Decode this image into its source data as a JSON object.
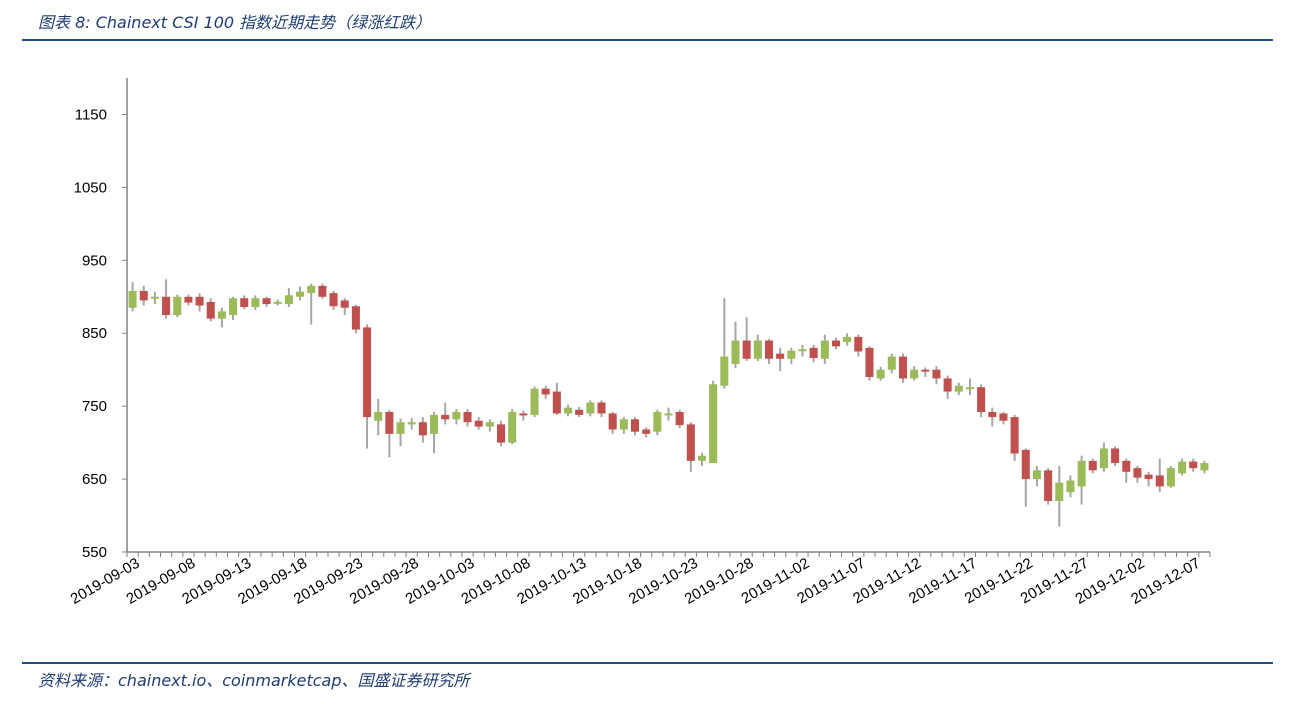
{
  "header": {
    "title": "图表 8:  Chainext CSI 100 指数近期走势（绿涨红跌）"
  },
  "footer": {
    "source": "资料来源：chainext.io、coinmarketcap、国盛证券研究所"
  },
  "colors": {
    "up": "#9bbb59",
    "down": "#c0504d",
    "wick": "#a6a6a6",
    "axis": "#808080",
    "rule": "#1f4e8c",
    "text_blue": "#1f3c73"
  },
  "chart_data": {
    "type": "candlestick",
    "ylim": [
      550,
      1200
    ],
    "yticks": [
      550,
      650,
      750,
      850,
      950,
      1050,
      1150
    ],
    "grid": false,
    "legend": "none",
    "xtick_labels": [
      "2019-09-03",
      "2019-09-08",
      "2019-09-13",
      "2019-09-18",
      "2019-09-23",
      "2019-09-28",
      "2019-10-03",
      "2019-10-08",
      "2019-10-13",
      "2019-10-18",
      "2019-10-23",
      "2019-10-28",
      "2019-11-02",
      "2019-11-07",
      "2019-11-12",
      "2019-11-17",
      "2019-11-22",
      "2019-11-27",
      "2019-12-02",
      "2019-12-07"
    ],
    "candles": [
      {
        "date": "2019-09-03",
        "open": 885,
        "close": 908,
        "high": 920,
        "low": 880
      },
      {
        "date": "2019-09-04",
        "open": 908,
        "close": 895,
        "high": 915,
        "low": 888
      },
      {
        "date": "2019-09-05",
        "open": 898,
        "close": 900,
        "high": 907,
        "low": 890
      },
      {
        "date": "2019-09-06",
        "open": 900,
        "close": 875,
        "high": 924,
        "low": 870
      },
      {
        "date": "2019-09-07",
        "open": 875,
        "close": 900,
        "high": 903,
        "low": 872
      },
      {
        "date": "2019-09-08",
        "open": 900,
        "close": 892,
        "high": 903,
        "low": 888
      },
      {
        "date": "2019-09-09",
        "open": 900,
        "close": 888,
        "high": 905,
        "low": 880
      },
      {
        "date": "2019-09-10",
        "open": 893,
        "close": 870,
        "high": 898,
        "low": 866
      },
      {
        "date": "2019-09-11",
        "open": 870,
        "close": 880,
        "high": 885,
        "low": 858
      },
      {
        "date": "2019-09-12",
        "open": 875,
        "close": 898,
        "high": 900,
        "low": 868
      },
      {
        "date": "2019-09-13",
        "open": 898,
        "close": 886,
        "high": 902,
        "low": 883
      },
      {
        "date": "2019-09-14",
        "open": 886,
        "close": 898,
        "high": 902,
        "low": 882
      },
      {
        "date": "2019-09-15",
        "open": 898,
        "close": 890,
        "high": 900,
        "low": 886
      },
      {
        "date": "2019-09-16",
        "open": 893,
        "close": 893,
        "high": 896,
        "low": 888
      },
      {
        "date": "2019-09-17",
        "open": 890,
        "close": 902,
        "high": 912,
        "low": 886
      },
      {
        "date": "2019-09-18",
        "open": 900,
        "close": 907,
        "high": 914,
        "low": 895
      },
      {
        "date": "2019-09-19",
        "open": 905,
        "close": 915,
        "high": 918,
        "low": 862
      },
      {
        "date": "2019-09-20",
        "open": 915,
        "close": 900,
        "high": 918,
        "low": 897
      },
      {
        "date": "2019-09-21",
        "open": 905,
        "close": 887,
        "high": 908,
        "low": 882
      },
      {
        "date": "2019-09-22",
        "open": 895,
        "close": 885,
        "high": 898,
        "low": 875
      },
      {
        "date": "2019-09-23",
        "open": 887,
        "close": 855,
        "high": 889,
        "low": 850
      },
      {
        "date": "2019-09-24",
        "open": 858,
        "close": 735,
        "high": 862,
        "low": 692
      },
      {
        "date": "2019-09-25",
        "open": 730,
        "close": 742,
        "high": 760,
        "low": 710
      },
      {
        "date": "2019-09-26",
        "open": 742,
        "close": 712,
        "high": 745,
        "low": 680
      },
      {
        "date": "2019-09-27",
        "open": 712,
        "close": 728,
        "high": 733,
        "low": 695
      },
      {
        "date": "2019-09-28",
        "open": 725,
        "close": 728,
        "high": 734,
        "low": 718
      },
      {
        "date": "2019-09-29",
        "open": 728,
        "close": 710,
        "high": 735,
        "low": 700
      },
      {
        "date": "2019-09-30",
        "open": 712,
        "close": 738,
        "high": 742,
        "low": 685
      },
      {
        "date": "2019-10-01",
        "open": 738,
        "close": 732,
        "high": 755,
        "low": 725
      },
      {
        "date": "2019-10-02",
        "open": 732,
        "close": 742,
        "high": 746,
        "low": 725
      },
      {
        "date": "2019-10-03",
        "open": 742,
        "close": 728,
        "high": 746,
        "low": 722
      },
      {
        "date": "2019-10-04",
        "open": 730,
        "close": 722,
        "high": 735,
        "low": 718
      },
      {
        "date": "2019-10-05",
        "open": 722,
        "close": 728,
        "high": 732,
        "low": 715
      },
      {
        "date": "2019-10-06",
        "open": 725,
        "close": 700,
        "high": 730,
        "low": 695
      },
      {
        "date": "2019-10-07",
        "open": 700,
        "close": 742,
        "high": 746,
        "low": 698
      },
      {
        "date": "2019-10-08",
        "open": 740,
        "close": 738,
        "high": 744,
        "low": 730
      },
      {
        "date": "2019-10-09",
        "open": 738,
        "close": 774,
        "high": 777,
        "low": 735
      },
      {
        "date": "2019-10-10",
        "open": 774,
        "close": 766,
        "high": 778,
        "low": 760
      },
      {
        "date": "2019-10-11",
        "open": 770,
        "close": 740,
        "high": 782,
        "low": 738
      },
      {
        "date": "2019-10-12",
        "open": 740,
        "close": 748,
        "high": 752,
        "low": 736
      },
      {
        "date": "2019-10-13",
        "open": 745,
        "close": 738,
        "high": 749,
        "low": 735
      },
      {
        "date": "2019-10-14",
        "open": 740,
        "close": 755,
        "high": 758,
        "low": 736
      },
      {
        "date": "2019-10-15",
        "open": 755,
        "close": 740,
        "high": 758,
        "low": 735
      },
      {
        "date": "2019-10-16",
        "open": 740,
        "close": 718,
        "high": 742,
        "low": 712
      },
      {
        "date": "2019-10-17",
        "open": 718,
        "close": 732,
        "high": 735,
        "low": 712
      },
      {
        "date": "2019-10-18",
        "open": 732,
        "close": 715,
        "high": 735,
        "low": 710
      },
      {
        "date": "2019-10-19",
        "open": 718,
        "close": 712,
        "high": 721,
        "low": 707
      },
      {
        "date": "2019-10-20",
        "open": 715,
        "close": 742,
        "high": 745,
        "low": 710
      },
      {
        "date": "2019-10-21",
        "open": 738,
        "close": 740,
        "high": 748,
        "low": 730
      },
      {
        "date": "2019-10-22",
        "open": 742,
        "close": 724,
        "high": 745,
        "low": 720
      },
      {
        "date": "2019-10-23",
        "open": 725,
        "close": 675,
        "high": 728,
        "low": 660
      },
      {
        "date": "2019-10-24",
        "open": 675,
        "close": 682,
        "high": 686,
        "low": 668
      },
      {
        "date": "2019-10-25",
        "open": 672,
        "close": 780,
        "high": 785,
        "low": 672
      },
      {
        "date": "2019-10-26",
        "open": 778,
        "close": 818,
        "high": 898,
        "low": 774
      },
      {
        "date": "2019-10-27",
        "open": 808,
        "close": 840,
        "high": 866,
        "low": 802
      },
      {
        "date": "2019-10-28",
        "open": 840,
        "close": 815,
        "high": 872,
        "low": 812
      },
      {
        "date": "2019-10-29",
        "open": 815,
        "close": 840,
        "high": 848,
        "low": 812
      },
      {
        "date": "2019-10-30",
        "open": 840,
        "close": 815,
        "high": 842,
        "low": 808
      },
      {
        "date": "2019-10-31",
        "open": 822,
        "close": 815,
        "high": 830,
        "low": 798
      },
      {
        "date": "2019-11-01",
        "open": 815,
        "close": 826,
        "high": 830,
        "low": 808
      },
      {
        "date": "2019-11-02",
        "open": 826,
        "close": 828,
        "high": 834,
        "low": 818
      },
      {
        "date": "2019-11-03",
        "open": 830,
        "close": 816,
        "high": 834,
        "low": 810
      },
      {
        "date": "2019-11-04",
        "open": 815,
        "close": 840,
        "high": 848,
        "low": 808
      },
      {
        "date": "2019-11-05",
        "open": 840,
        "close": 832,
        "high": 844,
        "low": 828
      },
      {
        "date": "2019-11-06",
        "open": 838,
        "close": 845,
        "high": 850,
        "low": 833
      },
      {
        "date": "2019-11-07",
        "open": 845,
        "close": 825,
        "high": 848,
        "low": 818
      },
      {
        "date": "2019-11-08",
        "open": 830,
        "close": 790,
        "high": 832,
        "low": 785
      },
      {
        "date": "2019-11-09",
        "open": 788,
        "close": 800,
        "high": 804,
        "low": 785
      },
      {
        "date": "2019-11-10",
        "open": 800,
        "close": 818,
        "high": 822,
        "low": 795
      },
      {
        "date": "2019-11-11",
        "open": 818,
        "close": 788,
        "high": 822,
        "low": 782
      },
      {
        "date": "2019-11-12",
        "open": 788,
        "close": 800,
        "high": 805,
        "low": 785
      },
      {
        "date": "2019-11-13",
        "open": 800,
        "close": 798,
        "high": 803,
        "low": 790
      },
      {
        "date": "2019-11-14",
        "open": 800,
        "close": 788,
        "high": 805,
        "low": 780
      },
      {
        "date": "2019-11-15",
        "open": 788,
        "close": 770,
        "high": 792,
        "low": 760
      },
      {
        "date": "2019-11-16",
        "open": 770,
        "close": 778,
        "high": 782,
        "low": 765
      },
      {
        "date": "2019-11-17",
        "open": 775,
        "close": 776,
        "high": 788,
        "low": 765
      },
      {
        "date": "2019-11-18",
        "open": 776,
        "close": 742,
        "high": 780,
        "low": 735
      },
      {
        "date": "2019-11-19",
        "open": 742,
        "close": 735,
        "high": 748,
        "low": 722
      },
      {
        "date": "2019-11-20",
        "open": 740,
        "close": 730,
        "high": 742,
        "low": 725
      },
      {
        "date": "2019-11-21",
        "open": 735,
        "close": 685,
        "high": 738,
        "low": 675
      },
      {
        "date": "2019-11-22",
        "open": 690,
        "close": 650,
        "high": 692,
        "low": 612
      },
      {
        "date": "2019-11-23",
        "open": 650,
        "close": 662,
        "high": 668,
        "low": 640
      },
      {
        "date": "2019-11-24",
        "open": 662,
        "close": 620,
        "high": 665,
        "low": 615
      },
      {
        "date": "2019-11-25",
        "open": 620,
        "close": 645,
        "high": 668,
        "low": 585
      },
      {
        "date": "2019-11-26",
        "open": 632,
        "close": 648,
        "high": 655,
        "low": 625
      },
      {
        "date": "2019-11-27",
        "open": 640,
        "close": 675,
        "high": 682,
        "low": 615
      },
      {
        "date": "2019-11-28",
        "open": 675,
        "close": 662,
        "high": 678,
        "low": 658
      },
      {
        "date": "2019-11-29",
        "open": 665,
        "close": 692,
        "high": 700,
        "low": 660
      },
      {
        "date": "2019-11-30",
        "open": 692,
        "close": 672,
        "high": 695,
        "low": 668
      },
      {
        "date": "2019-12-01",
        "open": 675,
        "close": 660,
        "high": 678,
        "low": 645
      },
      {
        "date": "2019-12-02",
        "open": 665,
        "close": 652,
        "high": 668,
        "low": 645
      },
      {
        "date": "2019-12-03",
        "open": 656,
        "close": 650,
        "high": 660,
        "low": 640
      },
      {
        "date": "2019-12-04",
        "open": 655,
        "close": 640,
        "high": 678,
        "low": 632
      },
      {
        "date": "2019-12-05",
        "open": 640,
        "close": 665,
        "high": 668,
        "low": 638
      },
      {
        "date": "2019-12-06",
        "open": 658,
        "close": 674,
        "high": 678,
        "low": 655
      },
      {
        "date": "2019-12-07",
        "open": 674,
        "close": 665,
        "high": 678,
        "low": 660
      },
      {
        "date": "2019-12-08",
        "open": 662,
        "close": 672,
        "high": 675,
        "low": 658
      }
    ]
  }
}
